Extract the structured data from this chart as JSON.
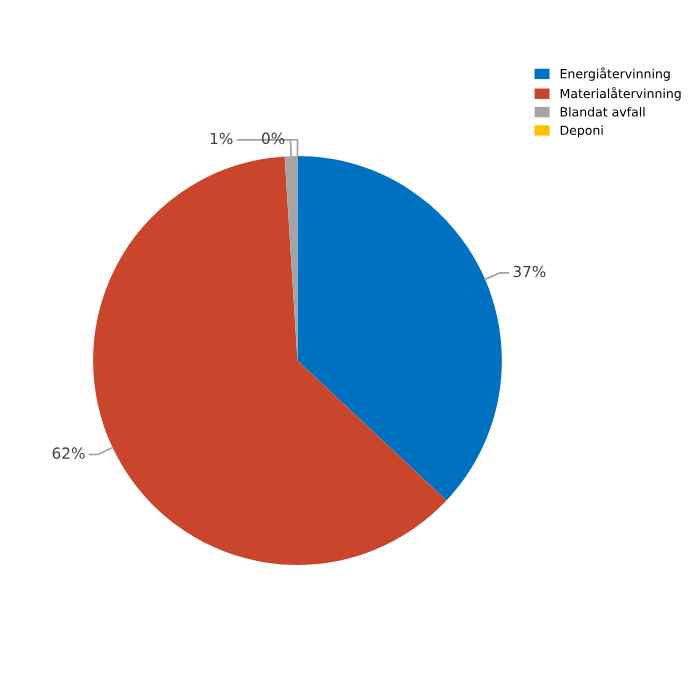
{
  "chart_data": {
    "type": "pie",
    "categories": [
      "Energiåtervinning",
      "Materialåtervinning",
      "Blandat avfall",
      "Deponi"
    ],
    "values": [
      37,
      62,
      1,
      0
    ],
    "colors": [
      "#0070c0",
      "#c9452b",
      "#a5a5a5",
      "#ffc000"
    ],
    "value_labels": [
      "37%",
      "62%",
      "1%",
      "0%"
    ],
    "legend": "top right"
  }
}
